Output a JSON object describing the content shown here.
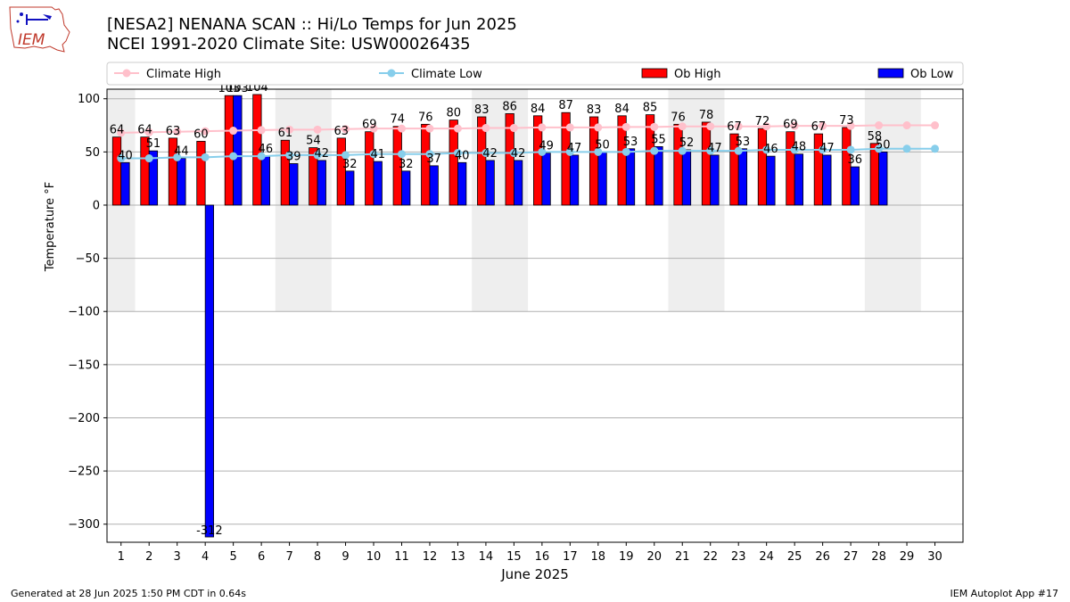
{
  "header": {
    "title_line1": "[NESA2] NENANA SCAN :: Hi/Lo Temps for Jun 2025",
    "title_line2": "NCEI 1991-2020 Climate Site: USW00026435"
  },
  "logo": {
    "text": "IEM"
  },
  "footer": {
    "left": "Generated at 28 Jun 2025 1:50 PM CDT in 0.64s",
    "right": "IEM Autoplot App #17"
  },
  "colors": {
    "ob_high": "#ff0000",
    "ob_low": "#0000ff",
    "climate_high": "#ffc0cb",
    "climate_low": "#87ceeb",
    "weekend_shade": "#eeeeee",
    "grid": "#b0b0b0"
  },
  "chart_data": {
    "type": "bar",
    "xlabel": "June 2025",
    "ylabel": "Temperature °F",
    "ylim": [
      -317,
      109
    ],
    "yticks": [
      100,
      50,
      0,
      -50,
      -100,
      -150,
      -200,
      -250,
      -300
    ],
    "ytick_labels": [
      "100",
      "50",
      "0",
      "−50",
      "−100",
      "−150",
      "−200",
      "−250",
      "−300"
    ],
    "categories": [
      "1",
      "2",
      "3",
      "4",
      "5",
      "6",
      "7",
      "8",
      "9",
      "10",
      "11",
      "12",
      "13",
      "14",
      "15",
      "16",
      "17",
      "18",
      "19",
      "20",
      "21",
      "22",
      "23",
      "24",
      "25",
      "26",
      "27",
      "28",
      "29",
      "30"
    ],
    "shaded_day_ranges": [
      [
        1,
        1
      ],
      [
        7,
        8
      ],
      [
        14,
        15
      ],
      [
        21,
        22
      ],
      [
        28,
        29
      ]
    ],
    "shade_ymin": -100,
    "grid": true,
    "legend_position": "top",
    "legend": [
      {
        "label": "Climate High",
        "kind": "line",
        "color": "#ffc0cb"
      },
      {
        "label": "Climate Low",
        "kind": "line",
        "color": "#87ceeb"
      },
      {
        "label": "Ob High",
        "kind": "bar",
        "color": "#ff0000"
      },
      {
        "label": "Ob Low",
        "kind": "bar",
        "color": "#0000ff"
      }
    ],
    "series": [
      {
        "name": "Ob High",
        "kind": "bar",
        "values": [
          64,
          64,
          63,
          60,
          103,
          104,
          61,
          54,
          63,
          69,
          74,
          76,
          80,
          83,
          86,
          84,
          87,
          83,
          84,
          85,
          76,
          78,
          67,
          72,
          69,
          67,
          73,
          58,
          null,
          null
        ],
        "labels": [
          "64",
          "64",
          "63",
          "60",
          "103",
          "104",
          "61",
          "54",
          "63",
          "69",
          "74",
          "76",
          "80",
          "83",
          "86",
          "84",
          "87",
          "83",
          "84",
          "85",
          "76",
          "78",
          "67",
          "72",
          "69",
          "67",
          "73",
          "58",
          "",
          ""
        ]
      },
      {
        "name": "Ob Low",
        "kind": "bar",
        "values": [
          40,
          51,
          44,
          -312,
          103,
          46,
          39,
          42,
          32,
          41,
          32,
          37,
          40,
          42,
          42,
          49,
          47,
          50,
          53,
          55,
          52,
          47,
          53,
          46,
          48,
          47,
          36,
          50,
          null,
          null
        ],
        "labels": [
          "40",
          "51",
          "44",
          "-312",
          "103",
          "46",
          "39",
          "42",
          "32",
          "41",
          "32",
          "37",
          "40",
          "42",
          "42",
          "49",
          "47",
          "50",
          "53",
          "55",
          "52",
          "47",
          "53",
          "46",
          "48",
          "47",
          "36",
          "50",
          "",
          ""
        ]
      },
      {
        "name": "Climate High",
        "kind": "line",
        "values": [
          68,
          68.5,
          69,
          69.5,
          70,
          70.5,
          71,
          71,
          71.5,
          72,
          72,
          72,
          72,
          72.5,
          72.5,
          73,
          73,
          73,
          73.5,
          73.5,
          74,
          74,
          74,
          74,
          74.5,
          74.5,
          74.5,
          75,
          75,
          75
        ]
      },
      {
        "name": "Climate Low",
        "kind": "line",
        "values": [
          44,
          44,
          45,
          45,
          46,
          46,
          47,
          47,
          47,
          48,
          48,
          48,
          49,
          49,
          49,
          50,
          50,
          50,
          50,
          51,
          51,
          51,
          51,
          52,
          52,
          52,
          52,
          53,
          53,
          53
        ]
      }
    ]
  }
}
